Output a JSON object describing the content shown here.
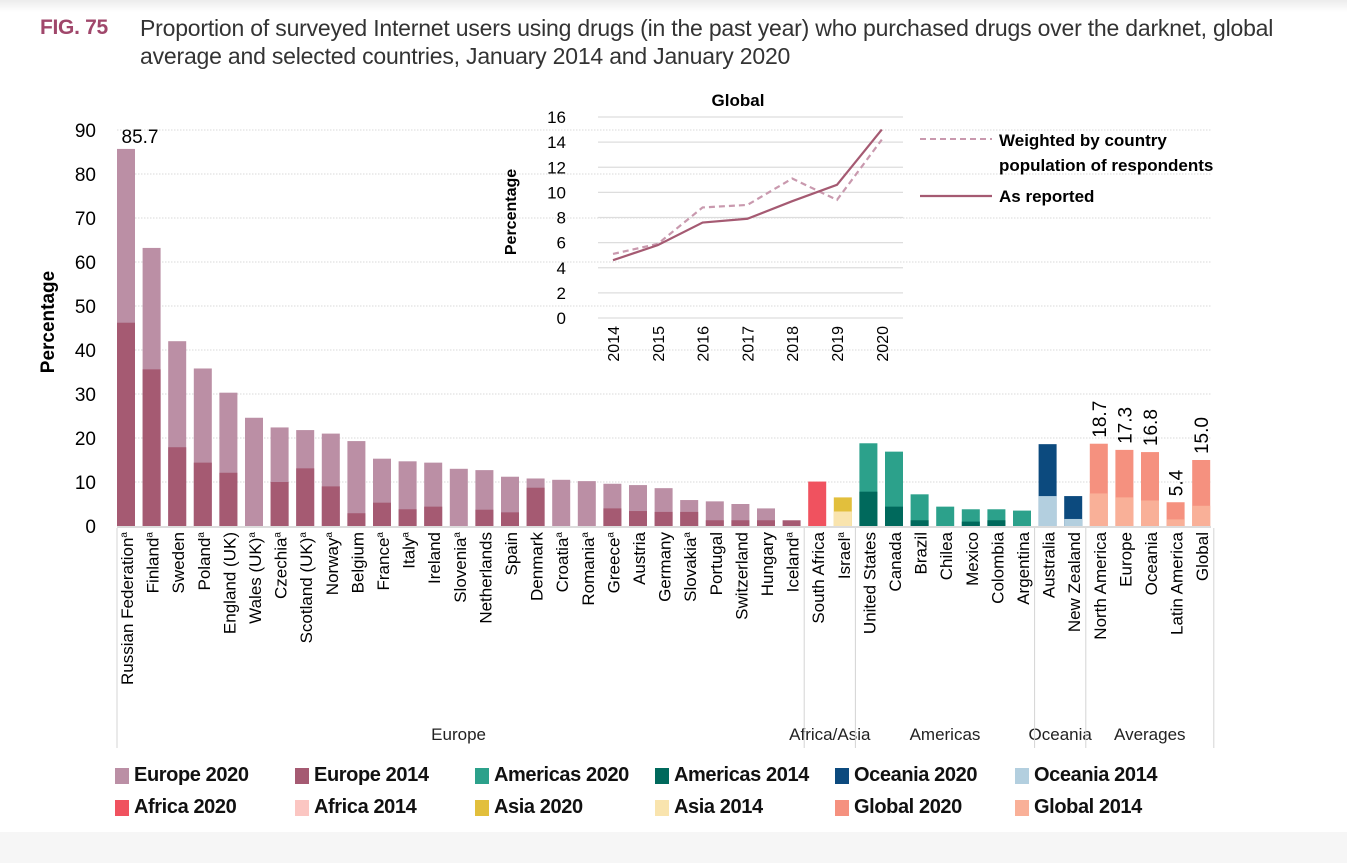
{
  "figure": {
    "number": "FIG. 75",
    "title": "Proportion of surveyed Internet users using drugs (in the past year) who purchased drugs over the darknet, global average and selected countries, January 2014 and January 2020"
  },
  "colors": {
    "Europe 2020": "#bb8fa5",
    "Europe 2014": "#a55a72",
    "Americas 2020": "#2ca18b",
    "Americas 2014": "#00695c",
    "Oceania 2020": "#0c4a7e",
    "Oceania 2014": "#b3cfdf",
    "Africa 2020": "#f0525f",
    "Africa 2014": "#fbc6c2",
    "Asia 2020": "#e2bf3c",
    "Asia 2014": "#f9e4ae",
    "Global 2020": "#f5917f",
    "Global 2014": "#f9b098",
    "line": "#a55a72",
    "line_dashed": "#c999ae"
  },
  "chart_data": [
    {
      "type": "bar",
      "subtype": "overlaid (2014 drawn in front of 2020)",
      "title": "",
      "xlabel": "",
      "ylabel": "Percentage",
      "ylim": [
        0,
        90
      ],
      "yticks": [
        0,
        10,
        20,
        30,
        40,
        50,
        60,
        70,
        80,
        90
      ],
      "grid": true,
      "categories": [
        {
          "label": "Russian Federation",
          "sup": "a",
          "group": "Europe",
          "v2020": 85.7,
          "v2014": 46.2,
          "data_label": "85.7"
        },
        {
          "label": "Finland",
          "sup": "a",
          "group": "Europe",
          "v2020": 63.2,
          "v2014": 35.6
        },
        {
          "label": "Sweden",
          "sup": "",
          "group": "Europe",
          "v2020": 42.0,
          "v2014": 17.9
        },
        {
          "label": "Poland",
          "sup": "a",
          "group": "Europe",
          "v2020": 35.8,
          "v2014": 14.4
        },
        {
          "label": "England (UK)",
          "sup": "",
          "group": "Europe",
          "v2020": 30.3,
          "v2014": 12.1
        },
        {
          "label": "Wales (UK)",
          "sup": "a",
          "group": "Europe",
          "v2020": 24.6,
          "v2014": null
        },
        {
          "label": "Czechia",
          "sup": "a",
          "group": "Europe",
          "v2020": 22.4,
          "v2014": 10.0
        },
        {
          "label": "Scotland (UK)",
          "sup": "a",
          "group": "Europe",
          "v2020": 21.8,
          "v2014": 13.1
        },
        {
          "label": "Norway",
          "sup": "a",
          "group": "Europe",
          "v2020": 21.0,
          "v2014": 9.0
        },
        {
          "label": "Belgium",
          "sup": "",
          "group": "Europe",
          "v2020": 19.3,
          "v2014": 2.9
        },
        {
          "label": "France",
          "sup": "a",
          "group": "Europe",
          "v2020": 15.3,
          "v2014": 5.3
        },
        {
          "label": "Italy",
          "sup": "a",
          "group": "Europe",
          "v2020": 14.7,
          "v2014": 3.8
        },
        {
          "label": "Ireland",
          "sup": "",
          "group": "Europe",
          "v2020": 14.4,
          "v2014": 4.4
        },
        {
          "label": "Slovenia",
          "sup": "a",
          "group": "Europe",
          "v2020": 13.0,
          "v2014": null
        },
        {
          "label": "Netherlands",
          "sup": "",
          "group": "Europe",
          "v2020": 12.7,
          "v2014": 3.7
        },
        {
          "label": "Spain",
          "sup": "",
          "group": "Europe",
          "v2020": 11.2,
          "v2014": 3.1
        },
        {
          "label": "Denmark",
          "sup": "",
          "group": "Europe",
          "v2020": 10.8,
          "v2014": 8.7
        },
        {
          "label": "Croatia",
          "sup": "a",
          "group": "Europe",
          "v2020": 10.5,
          "v2014": null
        },
        {
          "label": "Romania",
          "sup": "a",
          "group": "Europe",
          "v2020": 10.2,
          "v2014": null
        },
        {
          "label": "Greece",
          "sup": "a",
          "group": "Europe",
          "v2020": 9.6,
          "v2014": 4.0
        },
        {
          "label": "Austria",
          "sup": "",
          "group": "Europe",
          "v2020": 9.3,
          "v2014": 3.4
        },
        {
          "label": "Germany",
          "sup": "",
          "group": "Europe",
          "v2020": 8.6,
          "v2014": 3.2
        },
        {
          "label": "Slovakia",
          "sup": "a",
          "group": "Europe",
          "v2020": 5.9,
          "v2014": 3.2
        },
        {
          "label": "Portugal",
          "sup": "",
          "group": "Europe",
          "v2020": 5.6,
          "v2014": 1.3
        },
        {
          "label": "Switzerland",
          "sup": "",
          "group": "Europe",
          "v2020": 5.0,
          "v2014": 1.3
        },
        {
          "label": "Hungary",
          "sup": "",
          "group": "Europe",
          "v2020": 4.0,
          "v2014": 1.3
        },
        {
          "label": "Iceland",
          "sup": "a",
          "group": "Europe",
          "v2020": null,
          "v2014": 1.3
        },
        {
          "label": "South Africa",
          "sup": "",
          "group": "Africa",
          "v2020": 10.1,
          "v2014": null
        },
        {
          "label": "Israel",
          "sup": "a",
          "group": "Asia",
          "v2020": 6.5,
          "v2014": 3.3
        },
        {
          "label": "United States",
          "sup": "",
          "group": "Americas",
          "v2020": 18.8,
          "v2014": 7.8
        },
        {
          "label": "Canada",
          "sup": "",
          "group": "Americas",
          "v2020": 16.9,
          "v2014": 4.4
        },
        {
          "label": "Brazil",
          "sup": "",
          "group": "Americas",
          "v2020": 7.2,
          "v2014": 1.3
        },
        {
          "label": "Chilea",
          "sup": "",
          "group": "Americas",
          "v2020": 4.4,
          "v2014": null
        },
        {
          "label": "Mexico",
          "sup": "",
          "group": "Americas",
          "v2020": 3.8,
          "v2014": 1.0
        },
        {
          "label": "Colombia",
          "sup": "",
          "group": "Americas",
          "v2020": 3.8,
          "v2014": 1.3
        },
        {
          "label": "Argentina",
          "sup": "",
          "group": "Americas",
          "v2020": 3.5,
          "v2014": null
        },
        {
          "label": "Australia",
          "sup": "",
          "group": "Oceania",
          "v2020": 18.6,
          "v2014": 6.8
        },
        {
          "label": "New Zealand",
          "sup": "",
          "group": "Oceania",
          "v2020": 6.8,
          "v2014": 1.6
        },
        {
          "label": "North America",
          "sup": "",
          "group": "Global",
          "v2020": 18.7,
          "v2014": 7.4,
          "data_label": "18.7"
        },
        {
          "label": "Europe",
          "sup": "",
          "group": "Global",
          "v2020": 17.3,
          "v2014": 6.5,
          "data_label": "17.3"
        },
        {
          "label": "Oceania",
          "sup": "",
          "group": "Global",
          "v2020": 16.8,
          "v2014": 5.8,
          "data_label": "16.8"
        },
        {
          "label": "Latin America",
          "sup": "",
          "group": "Global",
          "v2020": 5.4,
          "v2014": 1.5,
          "data_label": "5.4"
        },
        {
          "label": "Global",
          "sup": "",
          "group": "Global",
          "v2020": 15.0,
          "v2014": 4.6,
          "data_label": "15.0"
        }
      ],
      "region_groups": [
        {
          "label": "Europe",
          "count": 27
        },
        {
          "label": "Africa/Asia",
          "count": 2
        },
        {
          "label": "Americas",
          "count": 7
        },
        {
          "label": "Oceania",
          "count": 2
        },
        {
          "label": "Averages",
          "count": 5
        }
      ],
      "legend": {
        "placement": "bottom",
        "items": [
          "Europe 2020",
          "Europe 2014",
          "Americas 2020",
          "Americas 2014",
          "Oceania 2020",
          "Oceania 2014",
          "Africa 2020",
          "Africa 2014",
          "Asia 2020",
          "Asia 2014",
          "Global 2020",
          "Global 2014"
        ]
      }
    },
    {
      "type": "line",
      "title": "Global",
      "xlabel": "",
      "ylabel": "Percentage",
      "ylim": [
        0,
        16
      ],
      "yticks": [
        0,
        2,
        4,
        6,
        8,
        10,
        12,
        14,
        16
      ],
      "grid": true,
      "x": [
        "2014",
        "2015",
        "2016",
        "2017",
        "2018",
        "2019",
        "2020"
      ],
      "series": [
        {
          "name": "Weighted by country population of respondents",
          "style": "dashed",
          "values": [
            5.1,
            5.9,
            8.8,
            9.0,
            11.1,
            9.4,
            14.2
          ]
        },
        {
          "name": "As reported",
          "style": "solid",
          "values": [
            4.6,
            5.8,
            7.6,
            7.9,
            9.3,
            10.6,
            15.0
          ]
        }
      ],
      "legend": {
        "placement": "right",
        "items": [
          "Weighted by country population of respondents",
          "As reported"
        ]
      }
    }
  ]
}
